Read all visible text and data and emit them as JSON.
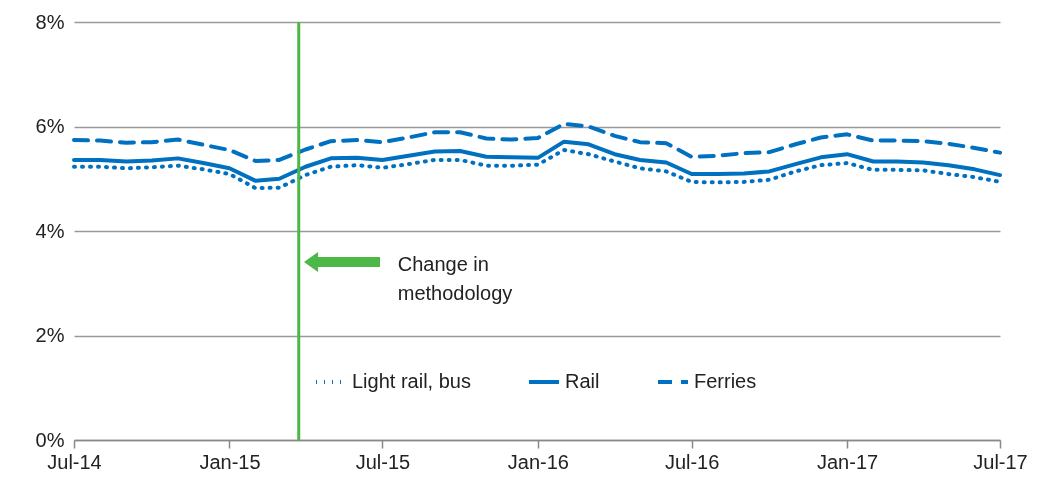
{
  "chart_data": {
    "type": "line",
    "x": [
      "2014-07",
      "2014-08",
      "2014-09",
      "2014-10",
      "2014-11",
      "2014-12",
      "2015-01",
      "2015-02",
      "2015-03",
      "2015-04",
      "2015-05",
      "2015-06",
      "2015-07",
      "2015-08",
      "2015-09",
      "2015-10",
      "2015-11",
      "2015-12",
      "2016-01",
      "2016-02",
      "2016-03",
      "2016-04",
      "2016-05",
      "2016-06",
      "2016-07",
      "2016-08",
      "2016-09",
      "2016-10",
      "2016-11",
      "2016-12",
      "2017-01",
      "2017-02",
      "2017-03",
      "2017-04",
      "2017-05",
      "2017-06",
      "2017-07"
    ],
    "series": [
      {
        "name": "Light rail, bus",
        "color": "#0070c0",
        "line_style": "dotted",
        "values": [
          5.23,
          5.23,
          5.2,
          5.22,
          5.25,
          5.18,
          5.09,
          4.82,
          4.83,
          5.07,
          5.23,
          5.26,
          5.21,
          5.28,
          5.36,
          5.36,
          5.25,
          5.25,
          5.27,
          5.55,
          5.47,
          5.33,
          5.2,
          5.14,
          4.94,
          4.93,
          4.94,
          4.98,
          5.14,
          5.26,
          5.3,
          5.17,
          5.17,
          5.16,
          5.09,
          5.03,
          4.94
        ]
      },
      {
        "name": "Rail",
        "color": "#0070c0",
        "line_style": "solid",
        "values": [
          5.36,
          5.36,
          5.33,
          5.35,
          5.39,
          5.3,
          5.2,
          4.96,
          5.0,
          5.23,
          5.39,
          5.4,
          5.36,
          5.44,
          5.52,
          5.53,
          5.42,
          5.41,
          5.4,
          5.71,
          5.66,
          5.47,
          5.36,
          5.31,
          5.09,
          5.09,
          5.1,
          5.14,
          5.28,
          5.41,
          5.47,
          5.33,
          5.33,
          5.31,
          5.26,
          5.18,
          5.07
        ]
      },
      {
        "name": "Ferries",
        "color": "#0070c0",
        "line_style": "dashed",
        "values": [
          5.74,
          5.73,
          5.69,
          5.7,
          5.75,
          5.65,
          5.55,
          5.34,
          5.36,
          5.56,
          5.72,
          5.74,
          5.7,
          5.79,
          5.89,
          5.89,
          5.77,
          5.75,
          5.78,
          6.05,
          6.0,
          5.82,
          5.7,
          5.68,
          5.42,
          5.44,
          5.49,
          5.51,
          5.66,
          5.79,
          5.85,
          5.73,
          5.73,
          5.72,
          5.67,
          5.59,
          5.5
        ]
      }
    ],
    "xlim": [
      "2014-07",
      "2017-07"
    ],
    "xticks": [
      {
        "value": "2014-07",
        "label": "Jul-14"
      },
      {
        "value": "2015-01",
        "label": "Jan-15"
      },
      {
        "value": "2015-07",
        "label": "Jul-15"
      },
      {
        "value": "2016-01",
        "label": "Jan-16"
      },
      {
        "value": "2016-07",
        "label": "Jul-16"
      },
      {
        "value": "2017-01",
        "label": "Jan-17"
      },
      {
        "value": "2017-07",
        "label": "Jul-17"
      }
    ],
    "ylim": [
      0,
      8
    ],
    "yticks": [
      {
        "value": 0,
        "label": "0%"
      },
      {
        "value": 2,
        "label": "2%"
      },
      {
        "value": 4,
        "label": "4%"
      },
      {
        "value": 6,
        "label": "6%"
      },
      {
        "value": 8,
        "label": "8%"
      }
    ],
    "grid": "y",
    "legend": "bottom",
    "marker": "none",
    "annotations": [
      "Change in methodology"
    ],
    "ref_lines": [
      {
        "axis": "x",
        "value": "2015-03-24",
        "color": "#4cb848"
      }
    ]
  }
}
